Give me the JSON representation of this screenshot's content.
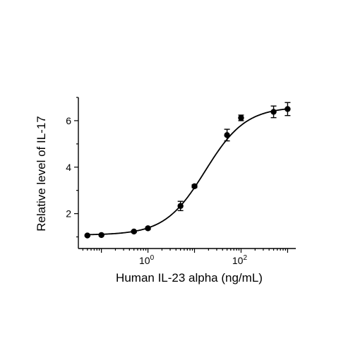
{
  "chart_data": {
    "type": "scatter",
    "xlabel": "Human IL-23 alpha (ng/mL)",
    "ylabel": "Relative level of IL-17",
    "x_scale": "log",
    "xlim": [
      0.032,
      1500
    ],
    "ylim": [
      0.5,
      7.0
    ],
    "x_ticks": [
      {
        "value": 1,
        "base": "10",
        "exp": "0"
      },
      {
        "value": 100,
        "base": "10",
        "exp": "2"
      }
    ],
    "y_ticks": [
      2,
      4,
      6
    ],
    "grid": false,
    "series": [
      {
        "points": [
          {
            "x": 0.05,
            "y": 1.06,
            "err": 0.03
          },
          {
            "x": 0.1,
            "y": 1.08,
            "err": 0.03
          },
          {
            "x": 0.5,
            "y": 1.23,
            "err": 0.04
          },
          {
            "x": 1.0,
            "y": 1.37,
            "err": 0.05
          },
          {
            "x": 5.0,
            "y": 2.33,
            "err": 0.2
          },
          {
            "x": 10.0,
            "y": 3.18,
            "err": 0.06
          },
          {
            "x": 50.0,
            "y": 5.38,
            "err": 0.25
          },
          {
            "x": 100.0,
            "y": 6.12,
            "err": 0.12
          },
          {
            "x": 500.0,
            "y": 6.38,
            "err": 0.25
          },
          {
            "x": 1000.0,
            "y": 6.5,
            "err": 0.28
          }
        ]
      }
    ],
    "fit": {
      "model": "4PL",
      "bottom": 1.08,
      "top": 6.6,
      "ec50": 17.0,
      "hill": 1.0,
      "x_range": [
        0.05,
        1000
      ]
    }
  }
}
